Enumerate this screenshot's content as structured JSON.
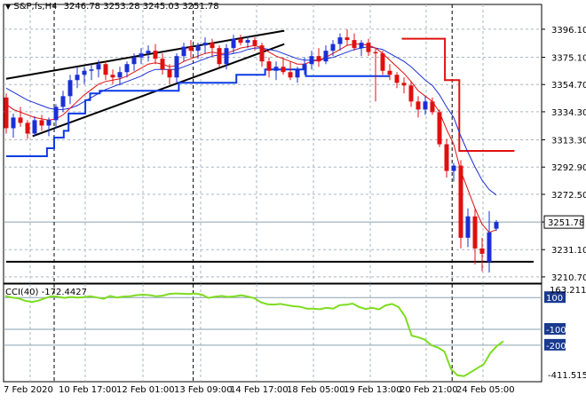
{
  "header": {
    "symbol": "S&P,fs,H4",
    "ohlc": "3246.78 3253.28 3245.03 3251.78"
  },
  "indicator": {
    "label": "CCI(40) -172.4427",
    "max_label": "163.2119",
    "min_label": "-411.5156",
    "levels": [
      "100",
      "-100",
      "-200"
    ]
  },
  "colors": {
    "bull": "#1a2fd6",
    "bear": "#e01010",
    "ma_fast": "#e01010",
    "ma_slow": "#1a2fd6",
    "stop_blue": "#0b3ce6",
    "stop_red": "#e01010",
    "cci": "#7ddc1f",
    "grid": "#a9b6c2",
    "current_box": "#ffffff"
  },
  "chart_data": [
    {
      "type": "candlestick",
      "title": "S&P,fs,H4",
      "current_price": 3251.78,
      "current_price_label": "3251.78",
      "ylim": [
        3206,
        3412
      ],
      "y_ticks": [
        "3396.10",
        "3375.10",
        "3354.70",
        "3334.30",
        "3313.30",
        "3292.90",
        "3272.50",
        "3251.78",
        "3231.10",
        "3210.70"
      ],
      "x_ticks": [
        "7 Feb 2020",
        "10 Feb 17:00",
        "12 Feb 01:00",
        "13 Feb 09:00",
        "14 Feb 17:00",
        "18 Feb 05:00",
        "19 Feb 13:00",
        "20 Feb 21:00",
        "24 Feb 05:00"
      ],
      "candles": [
        [
          3345,
          3348,
          3318,
          3322
        ],
        [
          3322,
          3333,
          3315,
          3330
        ],
        [
          3330,
          3338,
          3323,
          3326
        ],
        [
          3326,
          3328,
          3314,
          3318
        ],
        [
          3318,
          3331,
          3316,
          3328
        ],
        [
          3328,
          3332,
          3320,
          3324
        ],
        [
          3324,
          3330,
          3316,
          3328
        ],
        [
          3328,
          3340,
          3322,
          3338
        ],
        [
          3338,
          3350,
          3334,
          3346
        ],
        [
          3346,
          3362,
          3340,
          3358
        ],
        [
          3358,
          3368,
          3352,
          3362
        ],
        [
          3362,
          3368,
          3355,
          3365
        ],
        [
          3365,
          3370,
          3358,
          3366
        ],
        [
          3366,
          3373,
          3360,
          3370
        ],
        [
          3370,
          3372,
          3358,
          3362
        ],
        [
          3362,
          3366,
          3355,
          3360
        ],
        [
          3360,
          3368,
          3354,
          3364
        ],
        [
          3364,
          3372,
          3360,
          3370
        ],
        [
          3370,
          3378,
          3365,
          3375
        ],
        [
          3375,
          3382,
          3370,
          3378
        ],
        [
          3378,
          3384,
          3372,
          3380
        ],
        [
          3380,
          3385,
          3370,
          3374
        ],
        [
          3374,
          3378,
          3362,
          3366
        ],
        [
          3366,
          3370,
          3355,
          3360
        ],
        [
          3360,
          3378,
          3356,
          3376
        ],
        [
          3376,
          3386,
          3372,
          3383
        ],
        [
          3383,
          3388,
          3375,
          3380
        ],
        [
          3380,
          3386,
          3374,
          3384
        ],
        [
          3384,
          3390,
          3378,
          3386
        ],
        [
          3386,
          3389,
          3376,
          3382
        ],
        [
          3382,
          3384,
          3368,
          3370
        ],
        [
          3370,
          3385,
          3366,
          3382
        ],
        [
          3382,
          3392,
          3378,
          3389
        ],
        [
          3389,
          3392,
          3384,
          3386
        ],
        [
          3386,
          3391,
          3382,
          3388
        ],
        [
          3388,
          3390,
          3380,
          3384
        ],
        [
          3384,
          3386,
          3368,
          3372
        ],
        [
          3372,
          3375,
          3360,
          3365
        ],
        [
          3365,
          3372,
          3358,
          3368
        ],
        [
          3368,
          3375,
          3362,
          3364
        ],
        [
          3364,
          3372,
          3358,
          3360
        ],
        [
          3360,
          3368,
          3356,
          3366
        ],
        [
          3366,
          3375,
          3362,
          3370
        ],
        [
          3370,
          3380,
          3366,
          3376
        ],
        [
          3376,
          3382,
          3368,
          3372
        ],
        [
          3372,
          3384,
          3370,
          3380
        ],
        [
          3380,
          3388,
          3376,
          3385
        ],
        [
          3385,
          3393,
          3380,
          3390
        ],
        [
          3390,
          3396,
          3384,
          3388
        ],
        [
          3388,
          3393,
          3380,
          3382
        ],
        [
          3382,
          3388,
          3376,
          3386
        ],
        [
          3386,
          3389,
          3376,
          3379
        ],
        [
          3379,
          3382,
          3342,
          3378
        ],
        [
          3378,
          3380,
          3362,
          3365
        ],
        [
          3365,
          3370,
          3358,
          3362
        ],
        [
          3362,
          3364,
          3352,
          3356
        ],
        [
          3356,
          3360,
          3348,
          3354
        ],
        [
          3354,
          3357,
          3338,
          3342
        ],
        [
          3342,
          3346,
          3330,
          3336
        ],
        [
          3336,
          3346,
          3332,
          3342
        ],
        [
          3342,
          3345,
          3332,
          3334
        ],
        [
          3334,
          3336,
          3308,
          3310
        ],
        [
          3310,
          3314,
          3285,
          3290
        ],
        [
          3290,
          3296,
          3282,
          3294
        ],
        [
          3294,
          3298,
          3232,
          3240
        ],
        [
          3240,
          3262,
          3233,
          3256
        ],
        [
          3256,
          3262,
          3220,
          3232
        ],
        [
          3232,
          3240,
          3215,
          3228
        ],
        [
          3222,
          3260,
          3214,
          3244
        ],
        [
          3246.78,
          3253.28,
          3245.03,
          3251.78
        ]
      ],
      "ma_fast": [
        3340,
        3336,
        3334,
        3332,
        3330,
        3329,
        3328,
        3329,
        3332,
        3337,
        3342,
        3347,
        3351,
        3355,
        3357,
        3358,
        3359,
        3361,
        3364,
        3367,
        3370,
        3371,
        3370,
        3368,
        3369,
        3372,
        3374,
        3376,
        3378,
        3379,
        3378,
        3378,
        3380,
        3382,
        3383,
        3384,
        3382,
        3379,
        3376,
        3374,
        3372,
        3370,
        3370,
        3372,
        3373,
        3375,
        3378,
        3381,
        3384,
        3385,
        3385,
        3384,
        3382,
        3378,
        3373,
        3368,
        3363,
        3357,
        3350,
        3346,
        3342,
        3334,
        3321,
        3310,
        3290,
        3276,
        3262,
        3250,
        3244,
        3246
      ],
      "ma_slow": [
        3352,
        3349,
        3346,
        3343,
        3341,
        3339,
        3337,
        3336,
        3336,
        3337,
        3339,
        3342,
        3345,
        3348,
        3351,
        3353,
        3355,
        3357,
        3359,
        3361,
        3364,
        3366,
        3366,
        3366,
        3366,
        3368,
        3370,
        3372,
        3374,
        3376,
        3377,
        3377,
        3378,
        3379,
        3381,
        3382,
        3382,
        3381,
        3380,
        3378,
        3376,
        3374,
        3373,
        3373,
        3373,
        3374,
        3375,
        3377,
        3379,
        3381,
        3382,
        3383,
        3382,
        3381,
        3378,
        3375,
        3372,
        3368,
        3363,
        3358,
        3354,
        3347,
        3338,
        3330,
        3316,
        3304,
        3293,
        3283,
        3276,
        3272
      ],
      "stop_blue": [
        [
          0,
          3301
        ],
        [
          17,
          3301
        ],
        [
          17,
          3307
        ],
        [
          20,
          3307
        ],
        [
          20,
          3315
        ],
        [
          24,
          3315
        ],
        [
          24,
          3320
        ],
        [
          26,
          3320
        ],
        [
          26,
          3333
        ],
        [
          33,
          3333
        ],
        [
          33,
          3343
        ],
        [
          35,
          3343
        ],
        [
          35,
          3348
        ],
        [
          39,
          3348
        ],
        [
          39,
          3350
        ],
        [
          72,
          3350
        ],
        [
          72,
          3356
        ],
        [
          96,
          3356
        ],
        [
          96,
          3362
        ],
        [
          108,
          3362
        ],
        [
          108,
          3366
        ],
        [
          125,
          3366
        ],
        [
          125,
          3361
        ],
        [
          160,
          3361
        ]
      ],
      "stop_red": [
        [
          165,
          3389
        ],
        [
          183,
          3389
        ],
        [
          183,
          3358
        ],
        [
          189,
          3358
        ],
        [
          189,
          3305
        ],
        [
          212,
          3305
        ]
      ],
      "trendlines": [
        {
          "from": [
            0,
            3359
          ],
          "to": [
            116,
            3395
          ]
        },
        {
          "from": [
            11,
            3316
          ],
          "to": [
            116,
            3385
          ]
        },
        {
          "from": [
            0,
            3222
          ],
          "to": [
            220,
            3222
          ]
        }
      ],
      "vlines": [
        20,
        78,
        186
      ]
    },
    {
      "type": "line",
      "title": "CCI(40) -172.4427",
      "ylim": [
        -430,
        185
      ],
      "y_ticks": [
        "163.2119",
        "100",
        "-100",
        "-200",
        "-411.5156"
      ],
      "levels": [
        100,
        -100,
        -200
      ],
      "values": [
        110,
        100,
        95,
        80,
        72,
        80,
        95,
        108,
        105,
        98,
        104,
        100,
        102,
        108,
        100,
        92,
        110,
        100,
        106,
        108,
        115,
        118,
        115,
        108,
        112,
        123,
        126,
        124,
        122,
        126,
        118,
        98,
        105,
        110,
        104,
        108,
        114,
        106,
        96,
        70,
        58,
        56,
        60,
        52,
        45,
        42,
        30,
        30,
        26,
        35,
        30,
        52,
        55,
        62,
        40,
        28,
        35,
        25,
        50,
        60,
        40,
        -20,
        -140,
        -150,
        -165,
        -200,
        -215,
        -240,
        -350,
        -390,
        -395,
        -370,
        -345,
        -320,
        -250,
        -205,
        -175
      ]
    }
  ]
}
